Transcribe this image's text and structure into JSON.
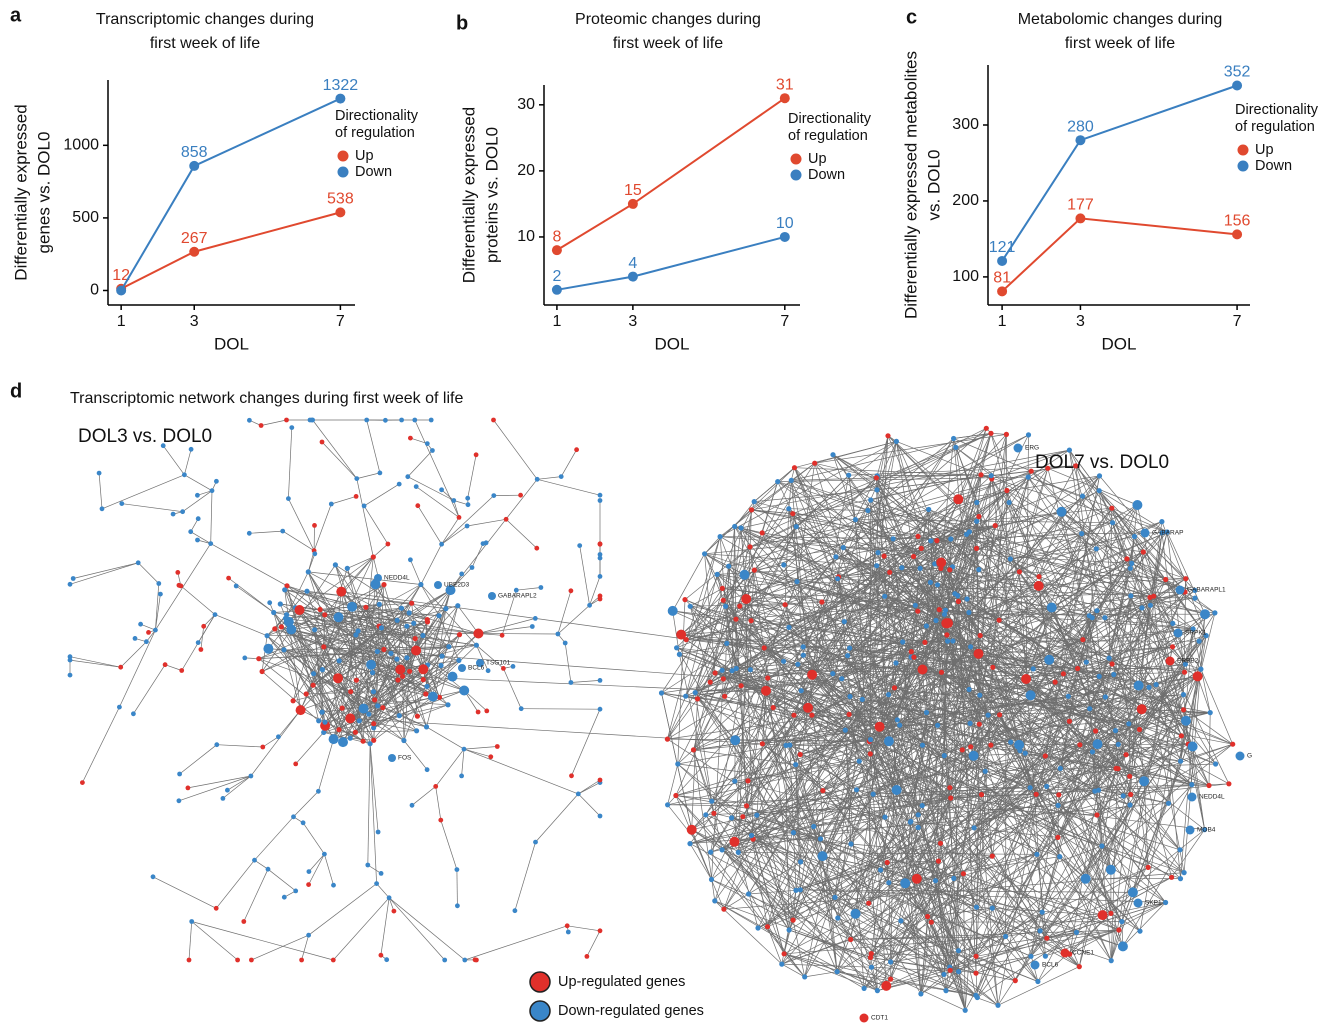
{
  "panel_labels": [
    "a",
    "b",
    "c",
    "d"
  ],
  "chart_data": [
    {
      "type": "line",
      "title": [
        "Transcriptomic changes during",
        "first week of life"
      ],
      "x_label": "DOL",
      "y_label": [
        "Differentially expressed",
        "genes vs. DOL0"
      ],
      "x": [
        1,
        3,
        7
      ],
      "xlim": [
        0.64,
        7.4
      ],
      "xticks": [
        1,
        3,
        7
      ],
      "ylim": [
        -100,
        1450
      ],
      "yticks": [
        0,
        500,
        1000
      ],
      "legend_title": [
        "Directionality",
        "of regulation"
      ],
      "legend": "right",
      "series": [
        {
          "name": "Up",
          "color": "#e0492f",
          "values": [
            12,
            267,
            538
          ],
          "value_labels": [
            "12",
            "267",
            "538"
          ]
        },
        {
          "name": "Down",
          "color": "#3a7fc0",
          "values": [
            0,
            858,
            1322
          ],
          "value_labels": [
            null,
            "858",
            "1322"
          ]
        }
      ]
    },
    {
      "type": "line",
      "title": [
        "Proteomic changes during",
        "first week of life"
      ],
      "x_label": "DOL",
      "y_label": [
        "Differentially expressed",
        "proteins vs. DOL0"
      ],
      "x": [
        1,
        3,
        7
      ],
      "xlim": [
        0.66,
        7.4
      ],
      "xticks": [
        1,
        3,
        7
      ],
      "ylim": [
        -0.3,
        33
      ],
      "yticks": [
        10,
        20,
        30
      ],
      "legend_title": [
        "Directionality",
        "of regulation"
      ],
      "legend": "right",
      "series": [
        {
          "name": "Up",
          "color": "#e0492f",
          "values": [
            8,
            15,
            31
          ],
          "value_labels": [
            "8",
            "15",
            "31"
          ]
        },
        {
          "name": "Down",
          "color": "#3a7fc0",
          "values": [
            2,
            4,
            10
          ],
          "value_labels": [
            "2",
            "4",
            "10"
          ]
        }
      ]
    },
    {
      "type": "line",
      "title": [
        "Metabolomic changes during",
        "first week of life"
      ],
      "x_label": "DOL",
      "y_label": [
        "Differentially expressed metabolites",
        "vs. DOL0"
      ],
      "x": [
        1,
        3,
        7
      ],
      "xlim": [
        0.64,
        7.33
      ],
      "xticks": [
        1,
        3,
        7
      ],
      "ylim": [
        63,
        379
      ],
      "yticks": [
        100,
        200,
        300
      ],
      "legend_title": [
        "Directionality",
        "of regulation"
      ],
      "legend": "right",
      "series": [
        {
          "name": "Up",
          "color": "#e0492f",
          "values": [
            81,
            177,
            156
          ],
          "value_labels": [
            "81",
            "177",
            "156"
          ]
        },
        {
          "name": "Down",
          "color": "#3a7fc0",
          "values": [
            121,
            280,
            352
          ],
          "value_labels": [
            "121",
            "280",
            "352"
          ]
        }
      ]
    }
  ],
  "network": {
    "title": "Transcriptomic network changes during first week of life",
    "left_title": "DOL3 vs. DOL0",
    "right_title": "DOL7 vs. DOL0",
    "left_labels": [
      "NEDD4L",
      "UBE2D3",
      "GABARAPL2",
      "TSG101",
      "BCL6",
      "FOS"
    ],
    "right_labels": [
      "ERG",
      "GABARAP",
      "GABARAPL1",
      "SRPK1",
      "ERBB2",
      "G",
      "NEDD4L",
      "MOB4",
      "SKP1",
      "CCNE1",
      "BCL6",
      "CDT1"
    ],
    "legend": [
      "Up-regulated genes",
      "Down-regulated genes"
    ]
  }
}
